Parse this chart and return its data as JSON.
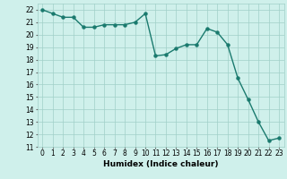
{
  "x": [
    0,
    1,
    2,
    3,
    4,
    5,
    6,
    7,
    8,
    9,
    10,
    11,
    12,
    13,
    14,
    15,
    16,
    17,
    18,
    19,
    20,
    21,
    22,
    23
  ],
  "y": [
    22.0,
    21.7,
    21.4,
    21.4,
    20.6,
    20.6,
    20.8,
    20.8,
    20.8,
    21.0,
    21.7,
    18.3,
    18.4,
    18.9,
    19.2,
    19.2,
    20.5,
    20.2,
    19.2,
    16.5,
    14.8,
    13.0,
    11.5,
    11.7
  ],
  "line_color": "#1a7a6e",
  "marker": "o",
  "markersize": 2.2,
  "linewidth": 1.0,
  "xlabel": "Humidex (Indice chaleur)",
  "xlim": [
    -0.5,
    23.5
  ],
  "ylim": [
    11,
    22.5
  ],
  "yticks": [
    11,
    12,
    13,
    14,
    15,
    16,
    17,
    18,
    19,
    20,
    21,
    22
  ],
  "xticks": [
    0,
    1,
    2,
    3,
    4,
    5,
    6,
    7,
    8,
    9,
    10,
    11,
    12,
    13,
    14,
    15,
    16,
    17,
    18,
    19,
    20,
    21,
    22,
    23
  ],
  "bg_color": "#cff0eb",
  "grid_color": "#a0cfc8",
  "label_fontsize": 6.5,
  "tick_fontsize": 5.5
}
